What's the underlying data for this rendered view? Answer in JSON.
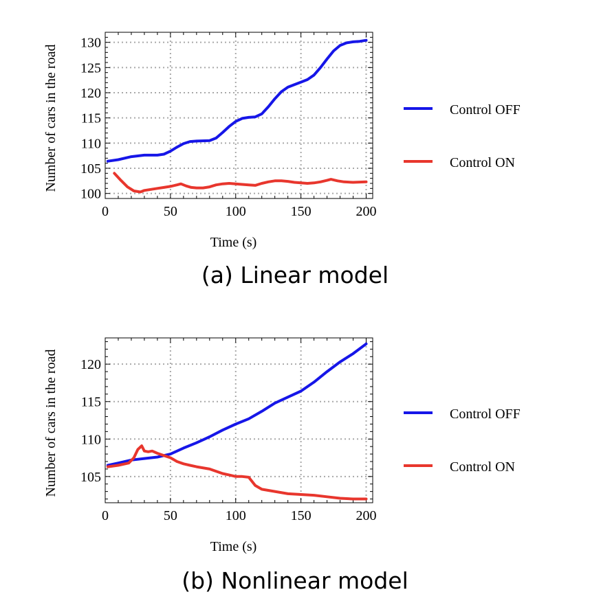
{
  "chart_data": [
    {
      "type": "line",
      "caption": "(a) Linear model",
      "xlabel": "Time (s)",
      "ylabel": "Number of cars in the road",
      "xlim": [
        0,
        205
      ],
      "ylim": [
        99,
        132
      ],
      "xticks": [
        0,
        50,
        100,
        150,
        200
      ],
      "yticks": [
        100,
        105,
        110,
        115,
        120,
        125,
        130
      ],
      "grid": true,
      "legend_position": "right",
      "series": [
        {
          "name": "Control OFF",
          "color": "#1616e8",
          "x": [
            2,
            10,
            20,
            30,
            40,
            45,
            50,
            55,
            60,
            65,
            70,
            80,
            85,
            90,
            95,
            100,
            105,
            110,
            115,
            120,
            125,
            130,
            135,
            140,
            145,
            150,
            155,
            160,
            165,
            170,
            175,
            180,
            185,
            190,
            195,
            200
          ],
          "y": [
            106.4,
            106.7,
            107.3,
            107.6,
            107.6,
            107.8,
            108.4,
            109.2,
            109.9,
            110.3,
            110.4,
            110.5,
            111.0,
            112.1,
            113.3,
            114.3,
            114.9,
            115.1,
            115.2,
            115.8,
            117.2,
            118.8,
            120.2,
            121.1,
            121.6,
            122.1,
            122.6,
            123.5,
            125.0,
            126.7,
            128.3,
            129.4,
            129.9,
            130.1,
            130.2,
            130.4
          ]
        },
        {
          "name": "Control ON",
          "color": "#e8362d",
          "x": [
            7,
            12,
            17,
            22,
            27,
            30,
            35,
            40,
            45,
            50,
            55,
            58,
            62,
            66,
            70,
            75,
            80,
            85,
            90,
            95,
            100,
            105,
            110,
            115,
            120,
            125,
            130,
            135,
            140,
            145,
            150,
            155,
            160,
            165,
            170,
            173,
            178,
            183,
            190,
            200
          ],
          "y": [
            104.0,
            102.6,
            101.3,
            100.5,
            100.3,
            100.6,
            100.8,
            101.0,
            101.2,
            101.4,
            101.7,
            101.9,
            101.5,
            101.2,
            101.1,
            101.1,
            101.3,
            101.7,
            101.9,
            102.0,
            101.9,
            101.8,
            101.7,
            101.6,
            102.0,
            102.3,
            102.5,
            102.5,
            102.4,
            102.2,
            102.1,
            102.0,
            102.1,
            102.3,
            102.6,
            102.8,
            102.5,
            102.3,
            102.2,
            102.3
          ]
        }
      ]
    },
    {
      "type": "line",
      "caption": "(b) Nonlinear model",
      "xlabel": "Time (s)",
      "ylabel": "Number of cars in the road",
      "xlim": [
        0,
        205
      ],
      "ylim": [
        101.5,
        123.5
      ],
      "xticks": [
        0,
        50,
        100,
        150,
        200
      ],
      "yticks": [
        105,
        110,
        115,
        120
      ],
      "grid": true,
      "legend_position": "right",
      "series": [
        {
          "name": "Control OFF",
          "color": "#1616e8",
          "x": [
            2,
            10,
            20,
            30,
            40,
            50,
            60,
            70,
            80,
            90,
            100,
            110,
            120,
            130,
            140,
            150,
            160,
            170,
            180,
            190,
            200
          ],
          "y": [
            106.5,
            106.8,
            107.2,
            107.4,
            107.6,
            108.0,
            108.8,
            109.5,
            110.3,
            111.2,
            112.0,
            112.7,
            113.7,
            114.8,
            115.6,
            116.4,
            117.6,
            119.0,
            120.3,
            121.4,
            122.7
          ]
        },
        {
          "name": "Control ON",
          "color": "#e8362d",
          "x": [
            2,
            10,
            18,
            22,
            25,
            28,
            30,
            33,
            36,
            40,
            45,
            50,
            55,
            60,
            65,
            70,
            80,
            90,
            95,
            100,
            105,
            110,
            115,
            120,
            130,
            140,
            150,
            160,
            170,
            180,
            190,
            200
          ],
          "y": [
            106.3,
            106.5,
            106.8,
            107.5,
            108.6,
            109.1,
            108.4,
            108.3,
            108.4,
            108.1,
            107.8,
            107.5,
            107.0,
            106.7,
            106.5,
            106.3,
            106.0,
            105.4,
            105.2,
            105.0,
            105.0,
            104.9,
            103.8,
            103.3,
            103.0,
            102.7,
            102.6,
            102.5,
            102.3,
            102.1,
            102.0,
            102.0
          ]
        }
      ]
    }
  ]
}
